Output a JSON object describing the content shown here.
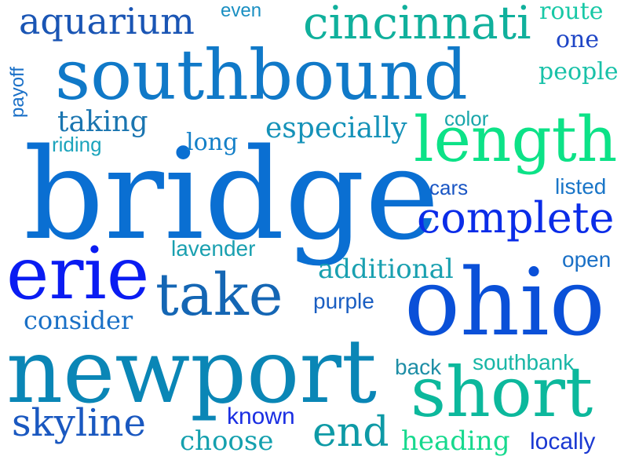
{
  "words": [
    {
      "text": "bridge",
      "color": "#0a6fd2",
      "rotated": false
    },
    {
      "text": "newport",
      "color": "#0a86b6",
      "rotated": false
    },
    {
      "text": "southbound",
      "color": "#1079c8",
      "rotated": false
    },
    {
      "text": "ohio",
      "color": "#0a50d8",
      "rotated": false
    },
    {
      "text": "length",
      "color": "#0ce287",
      "rotated": false
    },
    {
      "text": "erie",
      "color": "#0a1cf2",
      "rotated": false
    },
    {
      "text": "short",
      "color": "#0cb89c",
      "rotated": false
    },
    {
      "text": "take",
      "color": "#1466b4",
      "rotated": false
    },
    {
      "text": "cincinnati",
      "color": "#10b09c",
      "rotated": false
    },
    {
      "text": "complete",
      "color": "#0a2ce8",
      "rotated": false
    },
    {
      "text": "aquarium",
      "color": "#1a55b4",
      "rotated": false
    },
    {
      "text": "skyline",
      "color": "#1a58c0",
      "rotated": false
    },
    {
      "text": "end",
      "color": "#0e9aa6",
      "rotated": false
    },
    {
      "text": "especially",
      "color": "#1592b8",
      "rotated": false
    },
    {
      "text": "taking",
      "color": "#1a75b0",
      "rotated": false
    },
    {
      "text": "additional",
      "color": "#19a0b0",
      "rotated": false
    },
    {
      "text": "consider",
      "color": "#1a70c6",
      "rotated": false
    },
    {
      "text": "choose",
      "color": "#14a0ae",
      "rotated": false
    },
    {
      "text": "heading",
      "color": "#17d98e",
      "rotated": false
    },
    {
      "text": "route",
      "color": "#18c8a6",
      "rotated": false
    },
    {
      "text": "one",
      "color": "#1e45c6",
      "rotated": false
    },
    {
      "text": "people",
      "color": "#18c1a8",
      "rotated": false
    },
    {
      "text": "long",
      "color": "#1480c8",
      "rotated": false
    },
    {
      "text": "even",
      "color": "#1a8fc2",
      "rotated": false
    },
    {
      "text": "payoff",
      "color": "#1a70c8",
      "rotated": true
    },
    {
      "text": "riding",
      "color": "#1ca4bc",
      "rotated": false
    },
    {
      "text": "color",
      "color": "#19a6aa",
      "rotated": false
    },
    {
      "text": "cars",
      "color": "#1a56c4",
      "rotated": false
    },
    {
      "text": "listed",
      "color": "#1a76c8",
      "rotated": false
    },
    {
      "text": "lavender",
      "color": "#1aa0b0",
      "rotated": false
    },
    {
      "text": "open",
      "color": "#1a70c6",
      "rotated": false
    },
    {
      "text": "purple",
      "color": "#1a5ec2",
      "rotated": false
    },
    {
      "text": "back",
      "color": "#1e8ea6",
      "rotated": false
    },
    {
      "text": "southbank",
      "color": "#18b6a6",
      "rotated": false
    },
    {
      "text": "known",
      "color": "#1a2ee2",
      "rotated": false
    },
    {
      "text": "locally",
      "color": "#1a38d2",
      "rotated": false
    }
  ]
}
